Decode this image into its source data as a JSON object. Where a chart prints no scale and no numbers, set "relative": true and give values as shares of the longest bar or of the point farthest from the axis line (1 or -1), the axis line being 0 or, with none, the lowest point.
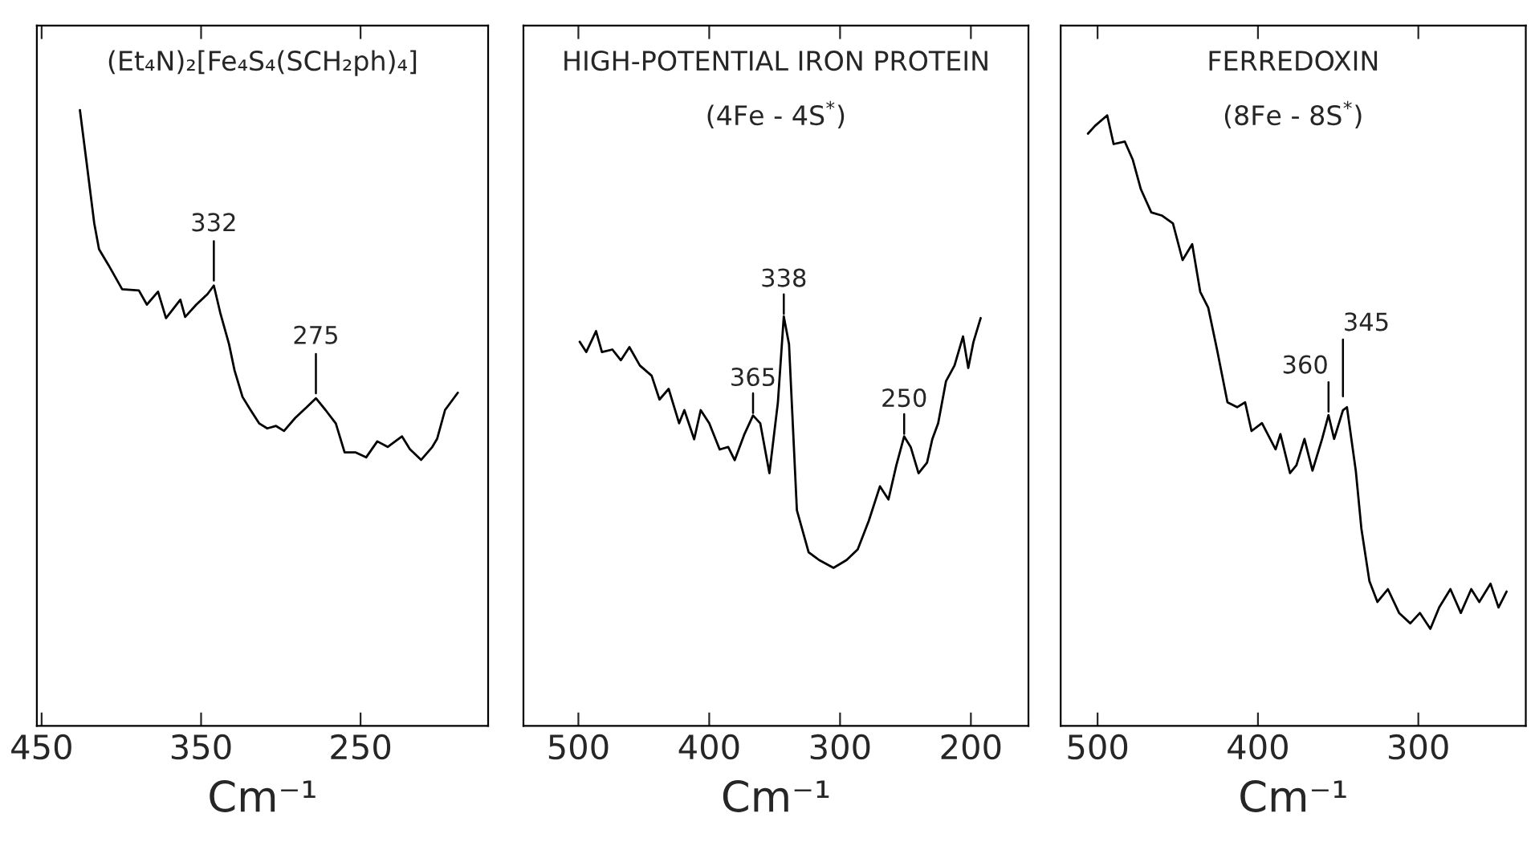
{
  "chart_data": [
    {
      "type": "line",
      "title": "(Et₄N)₂[Fe₄S₄(SCH₂ph)₄]",
      "xlabel": "Cm⁻¹",
      "relative": true,
      "xlim": [
        453,
        170
      ],
      "xticks": [
        450,
        350,
        250
      ],
      "x": [
        426,
        422,
        417,
        414,
        408,
        399.5,
        389,
        384,
        377,
        372,
        363,
        360,
        353,
        346,
        342,
        338,
        332.5,
        329,
        324,
        319,
        313.5,
        308.5,
        303,
        298,
        291,
        284,
        278,
        272,
        265.5,
        260,
        253,
        246.5,
        239.5,
        233,
        224,
        219,
        212,
        205,
        202,
        197,
        189
      ],
      "series": [
        {
          "color": "#000000",
          "values": [
            1.0,
            0.919,
            0.816,
            0.774,
            0.748,
            0.709,
            0.707,
            0.684,
            0.705,
            0.662,
            0.692,
            0.664,
            0.684,
            0.701,
            0.715,
            0.671,
            0.62,
            0.577,
            0.534,
            0.513,
            0.491,
            0.483,
            0.487,
            0.479,
            0.5,
            0.517,
            0.532,
            0.513,
            0.491,
            0.444,
            0.444,
            0.436,
            0.462,
            0.453,
            0.47,
            0.449,
            0.432,
            0.453,
            0.466,
            0.513,
            0.541
          ]
        }
      ],
      "annotations": [
        {
          "text": "332",
          "x": 342,
          "y": 0.715
        },
        {
          "text": "275",
          "x": 278,
          "y": 0.532
        }
      ]
    },
    {
      "type": "line",
      "title": "HIGH-POTENTIAL IRON PROTEIN",
      "subtitle": "(4Fe - 4S$^{*}$)",
      "xlabel": "Cm⁻¹",
      "relative": true,
      "xlim": [
        542,
        156
      ],
      "xticks": [
        500,
        400,
        300,
        200
      ],
      "x": [
        499,
        494,
        486.5,
        482,
        474,
        467.5,
        461,
        453,
        444,
        438,
        431,
        423,
        419,
        411.5,
        406.5,
        400,
        392,
        385.5,
        380.5,
        373,
        366.5,
        361,
        354,
        347.5,
        343,
        339,
        333,
        324,
        316,
        305,
        295,
        286.5,
        278,
        269.5,
        263,
        257,
        251,
        246,
        240,
        233.5,
        229.5,
        225,
        219,
        212.5,
        206,
        202,
        198,
        192.5
      ],
      "series": [
        {
          "color": "#000000",
          "values": [
            0.938,
            0.913,
            0.964,
            0.913,
            0.919,
            0.893,
            0.925,
            0.88,
            0.855,
            0.797,
            0.823,
            0.739,
            0.771,
            0.7,
            0.771,
            0.739,
            0.675,
            0.681,
            0.649,
            0.713,
            0.758,
            0.739,
            0.617,
            0.79,
            1.0,
            0.932,
            0.527,
            0.424,
            0.405,
            0.386,
            0.405,
            0.431,
            0.501,
            0.585,
            0.553,
            0.636,
            0.707,
            0.681,
            0.617,
            0.643,
            0.7,
            0.739,
            0.842,
            0.88,
            0.951,
            0.874,
            0.938,
            0.996
          ]
        }
      ],
      "annotations": [
        {
          "text": "365",
          "x": 366.5,
          "y": 0.758
        },
        {
          "text": "338",
          "x": 343,
          "y": 1.0
        },
        {
          "text": "250",
          "x": 251,
          "y": 0.707
        }
      ]
    },
    {
      "type": "line",
      "title": "FERREDOXIN",
      "subtitle": "(8Fe - 8S$^{*}$)",
      "xlabel": "Cm⁻¹",
      "relative": true,
      "xlim": [
        523,
        233
      ],
      "xticks": [
        500,
        400,
        300
      ],
      "x": [
        506,
        501.5,
        494,
        490,
        483,
        478,
        473,
        466.5,
        460,
        453,
        447,
        441,
        436,
        431,
        425.5,
        419,
        413,
        408,
        404,
        397.5,
        389,
        386,
        380,
        376,
        371,
        366,
        360,
        356,
        352.5,
        347,
        344.5,
        339,
        335.5,
        330.5,
        325.5,
        319,
        312,
        305,
        299,
        292.5,
        287,
        280,
        273.5,
        267,
        262,
        255,
        250,
        245
      ],
      "series": [
        {
          "color": "#000000",
          "values": [
            0.97,
            0.983,
            1.0,
            0.953,
            0.957,
            0.927,
            0.879,
            0.841,
            0.836,
            0.823,
            0.763,
            0.789,
            0.711,
            0.685,
            0.616,
            0.53,
            0.522,
            0.53,
            0.483,
            0.496,
            0.453,
            0.478,
            0.414,
            0.427,
            0.47,
            0.418,
            0.47,
            0.509,
            0.47,
            0.517,
            0.522,
            0.418,
            0.323,
            0.237,
            0.203,
            0.224,
            0.185,
            0.168,
            0.185,
            0.159,
            0.194,
            0.224,
            0.185,
            0.224,
            0.203,
            0.233,
            0.194,
            0.22
          ]
        }
      ],
      "annotations": [
        {
          "text": "360",
          "x": 356,
          "y": 0.509
        },
        {
          "text": "345",
          "x": 347,
          "y": 0.534
        }
      ]
    }
  ]
}
